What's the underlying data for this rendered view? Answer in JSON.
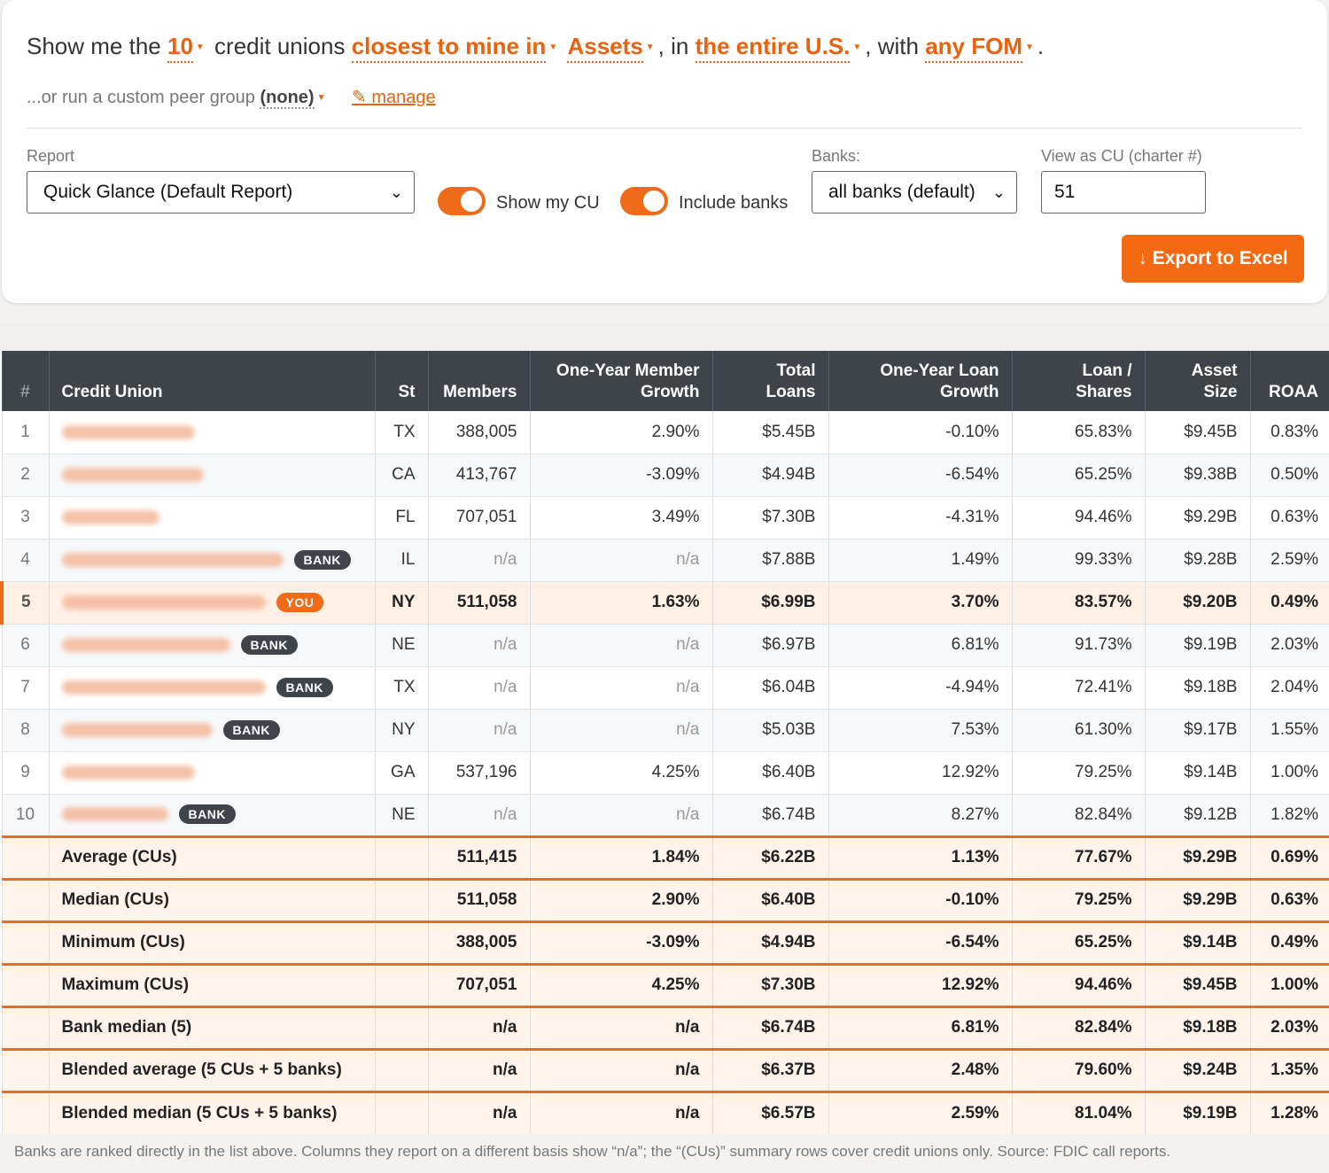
{
  "query": {
    "show_me_the": "Show me the",
    "count": "10",
    "credit_unions": "credit unions",
    "closest": "closest to mine in",
    "metric": "Assets",
    "comma_in": ", in",
    "region": "the entire U.S.",
    "comma_with": ", with",
    "fom": "any FOM",
    "period": "."
  },
  "custom": {
    "prefix": "...or run a custom peer group",
    "value": "(none)",
    "manage": "manage"
  },
  "controls": {
    "report_label": "Report",
    "report_value": "Quick Glance (Default Report)",
    "show_my_cu": "Show my CU",
    "include_banks": "Include banks",
    "banks_label": "Banks:",
    "banks_value": "all banks (default)",
    "view_as_label": "View as CU (charter #)",
    "view_as_value": "51",
    "export": "↓ Export to Excel"
  },
  "table": {
    "headers": {
      "rank": "#",
      "name": "Credit Union",
      "st": "St",
      "members": "Members",
      "member_growth_1": "One-Year Member",
      "member_growth_2": "Growth",
      "loans": "Total Loans",
      "loan_growth_1": "One-Year Loan",
      "loan_growth_2": "Growth",
      "loan_shares": "Loan / Shares",
      "asset": "Asset Size",
      "roaa": "ROAA"
    },
    "rows": [
      {
        "rank": "1",
        "st": "TX",
        "members": "388,005",
        "mgrowth": "2.90%",
        "loans": "$5.45B",
        "lgrowth": "-0.10%",
        "ls": "65.83%",
        "asset": "$9.45B",
        "roaa": "0.83%"
      },
      {
        "rank": "2",
        "st": "CA",
        "members": "413,767",
        "mgrowth": "-3.09%",
        "loans": "$4.94B",
        "lgrowth": "-6.54%",
        "ls": "65.25%",
        "asset": "$9.38B",
        "roaa": "0.50%"
      },
      {
        "rank": "3",
        "st": "FL",
        "members": "707,051",
        "mgrowth": "3.49%",
        "loans": "$7.30B",
        "lgrowth": "-4.31%",
        "ls": "94.46%",
        "asset": "$9.29B",
        "roaa": "0.63%"
      },
      {
        "rank": "4",
        "badge": "BANK",
        "st": "IL",
        "members": "n/a",
        "mgrowth": "n/a",
        "loans": "$7.88B",
        "lgrowth": "1.49%",
        "ls": "99.33%",
        "asset": "$9.28B",
        "roaa": "2.59%"
      },
      {
        "rank": "5",
        "badge": "YOU",
        "st": "NY",
        "members": "511,058",
        "mgrowth": "1.63%",
        "loans": "$6.99B",
        "lgrowth": "3.70%",
        "ls": "83.57%",
        "asset": "$9.20B",
        "roaa": "0.49%"
      },
      {
        "rank": "6",
        "badge": "BANK",
        "st": "NE",
        "members": "n/a",
        "mgrowth": "n/a",
        "loans": "$6.97B",
        "lgrowth": "6.81%",
        "ls": "91.73%",
        "asset": "$9.19B",
        "roaa": "2.03%"
      },
      {
        "rank": "7",
        "badge": "BANK",
        "st": "TX",
        "members": "n/a",
        "mgrowth": "n/a",
        "loans": "$6.04B",
        "lgrowth": "-4.94%",
        "ls": "72.41%",
        "asset": "$9.18B",
        "roaa": "2.04%"
      },
      {
        "rank": "8",
        "badge": "BANK",
        "st": "NY",
        "members": "n/a",
        "mgrowth": "n/a",
        "loans": "$5.03B",
        "lgrowth": "7.53%",
        "ls": "61.30%",
        "asset": "$9.17B",
        "roaa": "1.55%"
      },
      {
        "rank": "9",
        "st": "GA",
        "members": "537,196",
        "mgrowth": "4.25%",
        "loans": "$6.40B",
        "lgrowth": "12.92%",
        "ls": "79.25%",
        "asset": "$9.14B",
        "roaa": "1.00%"
      },
      {
        "rank": "10",
        "badge": "BANK",
        "st": "NE",
        "members": "n/a",
        "mgrowth": "n/a",
        "loans": "$6.74B",
        "lgrowth": "8.27%",
        "ls": "82.84%",
        "asset": "$9.12B",
        "roaa": "1.82%"
      }
    ],
    "summary": [
      {
        "label": "Average (CUs)",
        "members": "511,415",
        "mgrowth": "1.84%",
        "loans": "$6.22B",
        "lgrowth": "1.13%",
        "ls": "77.67%",
        "asset": "$9.29B",
        "roaa": "0.69%"
      },
      {
        "label": "Median (CUs)",
        "members": "511,058",
        "mgrowth": "2.90%",
        "loans": "$6.40B",
        "lgrowth": "-0.10%",
        "ls": "79.25%",
        "asset": "$9.29B",
        "roaa": "0.63%"
      },
      {
        "label": "Minimum (CUs)",
        "members": "388,005",
        "mgrowth": "-3.09%",
        "loans": "$4.94B",
        "lgrowth": "-6.54%",
        "ls": "65.25%",
        "asset": "$9.14B",
        "roaa": "0.49%"
      },
      {
        "label": "Maximum (CUs)",
        "members": "707,051",
        "mgrowth": "4.25%",
        "loans": "$7.30B",
        "lgrowth": "12.92%",
        "ls": "94.46%",
        "asset": "$9.45B",
        "roaa": "1.00%"
      },
      {
        "label": "Bank median (5)",
        "members": "n/a",
        "mgrowth": "n/a",
        "loans": "$6.74B",
        "lgrowth": "6.81%",
        "ls": "82.84%",
        "asset": "$9.18B",
        "roaa": "2.03%"
      },
      {
        "label": "Blended average (5 CUs + 5 banks)",
        "members": "n/a",
        "mgrowth": "n/a",
        "loans": "$6.37B",
        "lgrowth": "2.48%",
        "ls": "79.60%",
        "asset": "$9.24B",
        "roaa": "1.35%"
      },
      {
        "label": "Blended median (5 CUs + 5 banks)",
        "members": "n/a",
        "mgrowth": "n/a",
        "loans": "$6.57B",
        "lgrowth": "2.59%",
        "ls": "81.04%",
        "asset": "$9.19B",
        "roaa": "1.28%"
      }
    ]
  },
  "footnote": "Banks are ranked directly in the list above. Columns they report on a different basis show “n/a”; the “(CUs)” summary rows cover credit unions only. Source: FDIC call reports.",
  "colors": {
    "accent": "#f06b17",
    "header_bg": "#3f434a",
    "highlight_row": "#fff0e6"
  },
  "icons": {
    "caret": "caret-down-icon",
    "edit": "pencil-icon",
    "download": "download-arrow-icon"
  }
}
